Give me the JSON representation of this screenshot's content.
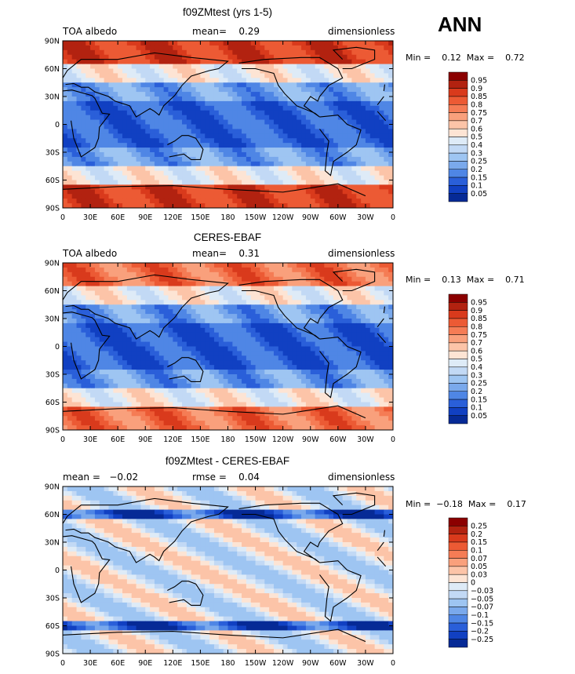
{
  "season_label": "ANN",
  "chart_data": [
    {
      "type": "heatmap",
      "title": "f09ZMtest (yrs 1-5)",
      "left_label": "TOA albedo",
      "center_label": "mean=    0.29",
      "right_label": "dimensionless",
      "minmax_label": "Min =    0.12  Max =    0.72",
      "min": 0.12,
      "max": 0.72,
      "mean": 0.29,
      "lat_ticks": [
        "90N",
        "60N",
        "30N",
        "0",
        "30S",
        "60S",
        "90S"
      ],
      "lon_ticks": [
        "0",
        "30E",
        "60E",
        "90E",
        "120E",
        "150E",
        "180",
        "150W",
        "120W",
        "90W",
        "60W",
        "30W",
        "0"
      ],
      "colorbar_labels": [
        "0.95",
        "0.9",
        "0.85",
        "0.8",
        "0.75",
        "0.7",
        "0.6",
        "0.5",
        "0.4",
        "0.3",
        "0.25",
        "0.2",
        "0.15",
        "0.1",
        "0.05"
      ],
      "colorbar_colors": [
        "#8b0000",
        "#b22210",
        "#d93a1c",
        "#ec5a34",
        "#f57c55",
        "#f9a07c",
        "#fcc4a8",
        "#fde4d4",
        "#deebf7",
        "#c2d9f5",
        "#9ec5f2",
        "#7aa9ec",
        "#4f86e5",
        "#2a5fd9",
        "#1140c2",
        "#062a96"
      ]
    },
    {
      "type": "heatmap",
      "title": "CERES-EBAF",
      "left_label": "TOA albedo",
      "center_label": "mean=    0.31",
      "right_label": "dimensionless",
      "minmax_label": "Min =    0.13  Max =    0.71",
      "min": 0.13,
      "max": 0.71,
      "mean": 0.31,
      "lat_ticks": [
        "90N",
        "60N",
        "30N",
        "0",
        "30S",
        "60S",
        "90S"
      ],
      "lon_ticks": [
        "0",
        "30E",
        "60E",
        "90E",
        "120E",
        "150E",
        "180",
        "150W",
        "120W",
        "90W",
        "60W",
        "30W",
        "0"
      ],
      "colorbar_labels": [
        "0.95",
        "0.9",
        "0.85",
        "0.8",
        "0.75",
        "0.7",
        "0.6",
        "0.5",
        "0.4",
        "0.3",
        "0.25",
        "0.2",
        "0.15",
        "0.1",
        "0.05"
      ],
      "colorbar_colors": [
        "#8b0000",
        "#b22210",
        "#d93a1c",
        "#ec5a34",
        "#f57c55",
        "#f9a07c",
        "#fcc4a8",
        "#fde4d4",
        "#deebf7",
        "#c2d9f5",
        "#9ec5f2",
        "#7aa9ec",
        "#4f86e5",
        "#2a5fd9",
        "#1140c2",
        "#062a96"
      ]
    },
    {
      "type": "heatmap",
      "title": "f09ZMtest - CERES-EBAF",
      "left_label": "mean =   −0.02",
      "center_label": "rmse =    0.04",
      "right_label": "dimensionless",
      "minmax_label": "Min =  −0.18  Max =    0.17",
      "min": -0.18,
      "max": 0.17,
      "mean": -0.02,
      "rmse": 0.04,
      "lat_ticks": [
        "90N",
        "60N",
        "30N",
        "0",
        "30S",
        "60S",
        "90S"
      ],
      "lon_ticks": [
        "0",
        "30E",
        "60E",
        "90E",
        "120E",
        "150E",
        "180",
        "150W",
        "120W",
        "90W",
        "60W",
        "30W",
        "0"
      ],
      "colorbar_labels": [
        "0.25",
        "0.2",
        "0.15",
        "0.1",
        "0.07",
        "0.05",
        "0.03",
        "0",
        "−0.03",
        "−0.05",
        "−0.07",
        "−0.1",
        "−0.15",
        "−0.2",
        "−0.25"
      ],
      "colorbar_colors": [
        "#8b0000",
        "#b22210",
        "#d93a1c",
        "#ec5a34",
        "#f57c55",
        "#f9a07c",
        "#fcc4a8",
        "#fde4d4",
        "#deebf7",
        "#c2d9f5",
        "#9ec5f2",
        "#7aa9ec",
        "#4f86e5",
        "#2a5fd9",
        "#1140c2",
        "#062a96"
      ]
    }
  ]
}
